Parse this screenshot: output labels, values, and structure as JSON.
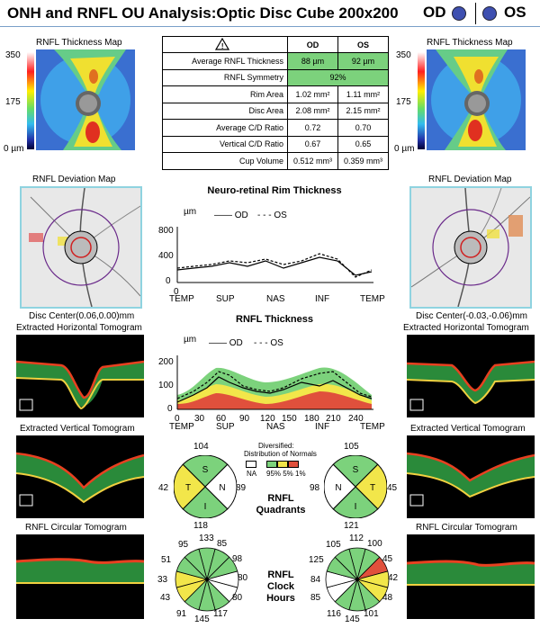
{
  "header": {
    "title": "ONH and RNFL OU Analysis:Optic Disc Cube 200x200",
    "od_label": "OD",
    "os_label": "OS",
    "eye_color": "#3e4fb0"
  },
  "left": {
    "thickness_map_title": "RNFL Thickness Map",
    "scale_top": "350",
    "scale_mid": "175",
    "scale_bottom": "0 µm",
    "deviation_map_title": "RNFL Deviation Map",
    "disc_center": "Disc Center(0.06,0.00)mm",
    "horizontal_tomogram_title": "Extracted Horizontal Tomogram",
    "vertical_tomogram_title": "Extracted Vertical Tomogram",
    "circular_tomogram_title": "RNFL Circular Tomogram"
  },
  "right": {
    "thickness_map_title": "RNFL Thickness Map",
    "scale_top": "350",
    "scale_mid": "175",
    "scale_bottom": "0 µm",
    "deviation_map_title": "RNFL Deviation Map",
    "disc_center": "Disc Center(-0.03,-0.06)mm",
    "horizontal_tomogram_title": "Extracted Horizontal Tomogram",
    "vertical_tomogram_title": "Extracted Vertical Tomogram",
    "circular_tomogram_title": "RNFL Circular Tomogram"
  },
  "table": {
    "warning_symbol": "!",
    "col_od": "OD",
    "col_os": "OS",
    "rows": [
      {
        "label": "Average RNFL Thickness",
        "od": "88 µm",
        "os": "92 µm"
      },
      {
        "label": "RNFL Symmetry",
        "both": "92%"
      },
      {
        "label": "Rim Area",
        "od": "1.02 mm²",
        "os": "1.11 mm²"
      },
      {
        "label": "Disc Area",
        "od": "2.08 mm²",
        "os": "2.15 mm²"
      },
      {
        "label": "Average C/D Ratio",
        "od": "0.72",
        "os": "0.70"
      },
      {
        "label": "Vertical C/D Ratio",
        "od": "0.67",
        "os": "0.65"
      },
      {
        "label": "Cup Volume",
        "od": "0.512 mm³",
        "os": "0.359 mm³"
      }
    ]
  },
  "legend": {
    "od": "OD",
    "os": "OS"
  },
  "rim_chart": {
    "title": "Neuro-retinal Rim Thickness",
    "unit": "µm",
    "y_ticks": [
      "800",
      "400",
      "0"
    ],
    "x_zero": "0",
    "x_labels": [
      "TEMP",
      "SUP",
      "NAS",
      "INF",
      "TEMP"
    ]
  },
  "rnfl_chart": {
    "title": "RNFL Thickness",
    "unit": "µm",
    "y_ticks": [
      "200",
      "100",
      "0"
    ],
    "x_ticks": [
      "0",
      "30",
      "60",
      "90",
      "120",
      "150",
      "180",
      "210",
      "240"
    ],
    "x_labels": [
      "TEMP",
      "SUP",
      "NAS",
      "INF",
      "TEMP"
    ]
  },
  "quadrants": {
    "title_line1": "RNFL",
    "title_line2": "Quadrants",
    "od": {
      "S": "104",
      "N": "89",
      "I": "118",
      "T": "42"
    },
    "os": {
      "S": "105",
      "N": "98",
      "I": "121",
      "T": "45"
    },
    "letters": {
      "S": "S",
      "N": "N",
      "I": "I",
      "T": "T"
    }
  },
  "distribution": {
    "title_line1": "Diversified:",
    "title_line2": "Distribution of Normals",
    "na": "NA",
    "pct": "95% 5% 1%",
    "colors": [
      "#ffffff",
      "#7cd27c",
      "#f2e64a",
      "#e0503c"
    ]
  },
  "clock": {
    "title_line1": "RNFL",
    "title_line2": "Clock",
    "title_line3": "Hours",
    "od": [
      "133",
      "85",
      "98",
      "80",
      "80",
      "117",
      "145",
      "91",
      "43",
      "33",
      "51",
      "95"
    ],
    "os": [
      "112",
      "100",
      "45",
      "42",
      "48",
      "101",
      "145",
      "116",
      "85",
      "84",
      "125",
      "105"
    ]
  },
  "colors": {
    "green": "#7cd27c",
    "yellow": "#f2e64a",
    "red": "#e0503c",
    "cyan_frame": "#8fd3e0"
  }
}
